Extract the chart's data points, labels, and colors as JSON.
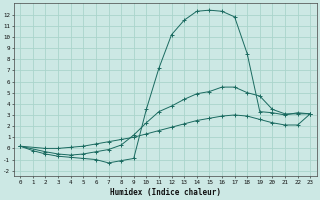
{
  "title": "",
  "xlabel": "Humidex (Indice chaleur)",
  "bg_color": "#cce8e4",
  "grid_color": "#aad4cc",
  "line_color": "#1a6a60",
  "xlim": [
    -0.5,
    23.5
  ],
  "ylim": [
    -2.5,
    13.0
  ],
  "xticks": [
    0,
    1,
    2,
    3,
    4,
    5,
    6,
    7,
    8,
    9,
    10,
    11,
    12,
    13,
    14,
    15,
    16,
    17,
    18,
    19,
    20,
    21,
    22,
    23
  ],
  "yticks": [
    -2,
    -1,
    0,
    1,
    2,
    3,
    4,
    5,
    6,
    7,
    8,
    9,
    10,
    11,
    12
  ],
  "line1_x": [
    0,
    1,
    2,
    3,
    4,
    5,
    6,
    7,
    8,
    9,
    10,
    11,
    12,
    13,
    14,
    15,
    16,
    17,
    18,
    19,
    20,
    21,
    22,
    23
  ],
  "line1_y": [
    0.2,
    -0.2,
    -0.5,
    -0.7,
    -0.8,
    -0.9,
    -1.0,
    -1.3,
    -1.1,
    -0.9,
    3.5,
    7.2,
    10.2,
    11.5,
    12.3,
    12.4,
    12.3,
    11.8,
    8.5,
    3.3,
    3.2,
    3.0,
    3.2,
    3.1
  ],
  "line2_x": [
    0,
    2,
    3,
    4,
    5,
    6,
    7,
    8,
    9,
    10,
    11,
    12,
    13,
    14,
    15,
    16,
    17,
    18,
    19,
    20,
    21,
    22,
    23
  ],
  "line2_y": [
    0.2,
    -0.3,
    -0.5,
    -0.6,
    -0.5,
    -0.3,
    -0.1,
    0.3,
    1.2,
    2.3,
    3.3,
    3.8,
    4.4,
    4.9,
    5.1,
    5.5,
    5.5,
    5.0,
    4.7,
    3.5,
    3.1,
    3.1,
    3.1
  ],
  "line3_x": [
    0,
    2,
    3,
    4,
    5,
    6,
    7,
    8,
    9,
    10,
    11,
    12,
    13,
    14,
    15,
    16,
    17,
    18,
    19,
    20,
    21,
    22,
    23
  ],
  "line3_y": [
    0.2,
    0.0,
    0.0,
    0.1,
    0.2,
    0.4,
    0.6,
    0.8,
    1.0,
    1.3,
    1.6,
    1.9,
    2.2,
    2.5,
    2.7,
    2.9,
    3.0,
    2.9,
    2.6,
    2.3,
    2.1,
    2.1,
    3.1
  ]
}
